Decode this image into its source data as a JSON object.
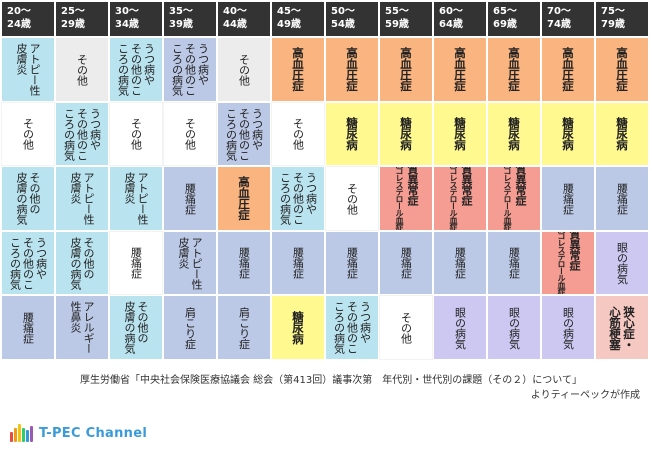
{
  "headers": [
    "20～\n24歳",
    "25～\n29歳",
    "30～\n34歳",
    "35～\n39歳",
    "40～\n44歳",
    "45～\n49歳",
    "50～\n54歳",
    "55～\n59歳",
    "60～\n64歳",
    "65～\n69歳",
    "70～\n74歳",
    "75～\n79歳"
  ],
  "colors": {
    "gray": "#ececec",
    "white": "#ffffff",
    "cyan": "#b9e3ef",
    "blue": "#bcc9e6",
    "orange": "#f9b47f",
    "yellow": "#fff98f",
    "red": "#f59d92",
    "purple": "#cdc8f2",
    "pink": "#f6c8c2"
  },
  "rows": [
    [
      {
        "text": "アトピー性\n皮膚炎",
        "color": "cyan"
      },
      {
        "text": "その他",
        "color": "gray"
      },
      {
        "text": "うつ病や\nその他のこ\nころの病気",
        "color": "cyan"
      },
      {
        "text": "うつ病や\nその他のこ\nころの病気",
        "color": "blue"
      },
      {
        "text": "その他",
        "color": "gray"
      },
      {
        "text": "高血圧症",
        "color": "orange",
        "bold": true
      },
      {
        "text": "高血圧症",
        "color": "orange",
        "bold": true
      },
      {
        "text": "高血圧症",
        "color": "orange",
        "bold": true
      },
      {
        "text": "高血圧症",
        "color": "orange",
        "bold": true
      },
      {
        "text": "高血圧症",
        "color": "orange",
        "bold": true
      },
      {
        "text": "高血圧症",
        "color": "orange",
        "bold": true
      },
      {
        "text": "高血圧症",
        "color": "orange",
        "bold": true
      }
    ],
    [
      {
        "text": "その他",
        "color": "white"
      },
      {
        "text": "うつ病や\nその他のこ\nころの病気",
        "color": "cyan"
      },
      {
        "text": "その他",
        "color": "white"
      },
      {
        "text": "その他",
        "color": "white"
      },
      {
        "text": "うつ病や\nその他のこ\nころの病気",
        "color": "blue"
      },
      {
        "text": "その他",
        "color": "white"
      },
      {
        "text": "糖尿病",
        "color": "yellow",
        "bold": true
      },
      {
        "text": "糖尿病",
        "color": "yellow",
        "bold": true
      },
      {
        "text": "糖尿病",
        "color": "yellow",
        "bold": true
      },
      {
        "text": "糖尿病",
        "color": "yellow",
        "bold": true
      },
      {
        "text": "糖尿病",
        "color": "yellow",
        "bold": true
      },
      {
        "text": "糖尿病",
        "color": "yellow",
        "bold": true
      }
    ],
    [
      {
        "text": "その他の\n皮膚の病気",
        "color": "cyan"
      },
      {
        "text": "アトピー性\n皮膚炎",
        "color": "cyan"
      },
      {
        "text": "アトピー性\n皮膚炎",
        "color": "cyan"
      },
      {
        "text": "腰痛症",
        "color": "blue"
      },
      {
        "text": "高血圧症",
        "color": "orange",
        "bold": true
      },
      {
        "text": "うつ病や\nその他のこ\nころの病気",
        "color": "cyan"
      },
      {
        "text": "その他",
        "color": "white"
      },
      {
        "text": "脂質異常症",
        "sub": "（高コレステロール血症等）",
        "color": "red"
      },
      {
        "text": "脂質異常症",
        "sub": "（高コレステロール血症等）",
        "color": "red"
      },
      {
        "text": "脂質異常症",
        "sub": "（高コレステロール血症等）",
        "color": "red"
      },
      {
        "text": "腰痛症",
        "color": "blue"
      },
      {
        "text": "腰痛症",
        "color": "blue"
      }
    ],
    [
      {
        "text": "うつ病や\nその他のこ\nころの病気",
        "color": "cyan"
      },
      {
        "text": "その他の\n皮膚の病気",
        "color": "cyan"
      },
      {
        "text": "腰痛症",
        "color": "white"
      },
      {
        "text": "アトピー性\n皮膚炎",
        "color": "blue"
      },
      {
        "text": "腰痛症",
        "color": "blue"
      },
      {
        "text": "腰痛症",
        "color": "blue"
      },
      {
        "text": "腰痛症",
        "color": "blue"
      },
      {
        "text": "腰痛症",
        "color": "blue"
      },
      {
        "text": "腰痛症",
        "color": "blue"
      },
      {
        "text": "腰痛症",
        "color": "blue"
      },
      {
        "text": "脂質異常症",
        "sub": "（高コレステロール血症等）",
        "color": "red"
      },
      {
        "text": "眼の病気",
        "color": "purple"
      }
    ],
    [
      {
        "text": "腰痛症",
        "color": "blue"
      },
      {
        "text": "アレルギー\n性鼻炎",
        "color": "blue"
      },
      {
        "text": "その他の\n皮膚の病気",
        "color": "cyan"
      },
      {
        "text": "肩こり症",
        "color": "blue"
      },
      {
        "text": "肩こり症",
        "color": "blue"
      },
      {
        "text": "糖尿病",
        "color": "yellow",
        "bold": true
      },
      {
        "text": "うつ病や\nその他のこ\nころの病気",
        "color": "cyan"
      },
      {
        "text": "その他",
        "color": "white"
      },
      {
        "text": "眼の病気",
        "color": "purple"
      },
      {
        "text": "眼の病気",
        "color": "purple"
      },
      {
        "text": "眼の病気",
        "color": "purple"
      },
      {
        "text": "狭心症・\n心筋梗塞",
        "color": "pink",
        "bold": true
      }
    ]
  ],
  "caption": {
    "line1": "厚生労働省「中央社会保険医療協議会 総会（第413回）議事次第　年代別・世代別の課題（その２）について」",
    "line2": "よりティーペックが作成"
  },
  "logo": {
    "text": "T-PEC Channel",
    "icon": "bar-logo-icon",
    "bar_colors": [
      "#e74c3c",
      "#f39c12",
      "#f1c40f",
      "#2ecc71",
      "#3498db",
      "#9b59b6"
    ]
  }
}
